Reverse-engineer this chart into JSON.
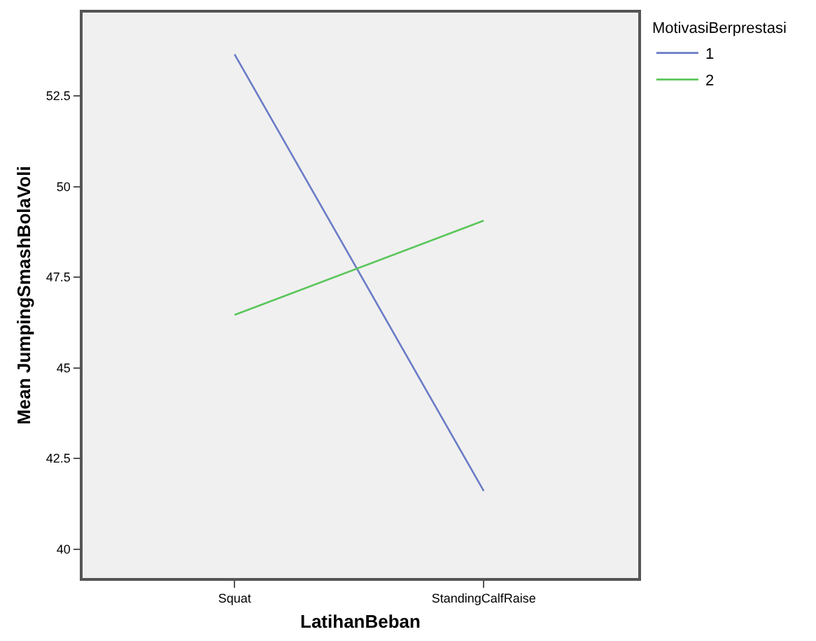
{
  "chart_data": {
    "type": "line",
    "xlabel": "LatihanBeban",
    "ylabel": "Mean JumpingSmashBolaVoli",
    "legend_title": "MotivasiBerprestasi",
    "categories": [
      "Squat",
      "StandingCalfRaise"
    ],
    "series": [
      {
        "name": "1",
        "color": "#6a7bc6",
        "values": [
          53.65,
          41.6
        ]
      },
      {
        "name": "2",
        "color": "#5ac65a",
        "values": [
          46.46,
          49.06
        ]
      }
    ],
    "ylim": [
      39.2,
      54.8
    ],
    "yticks": [
      40,
      42.5,
      45,
      47.5,
      50,
      52.5
    ],
    "grid": false,
    "legend": "top right",
    "marker": "none",
    "line_style": "solid"
  }
}
